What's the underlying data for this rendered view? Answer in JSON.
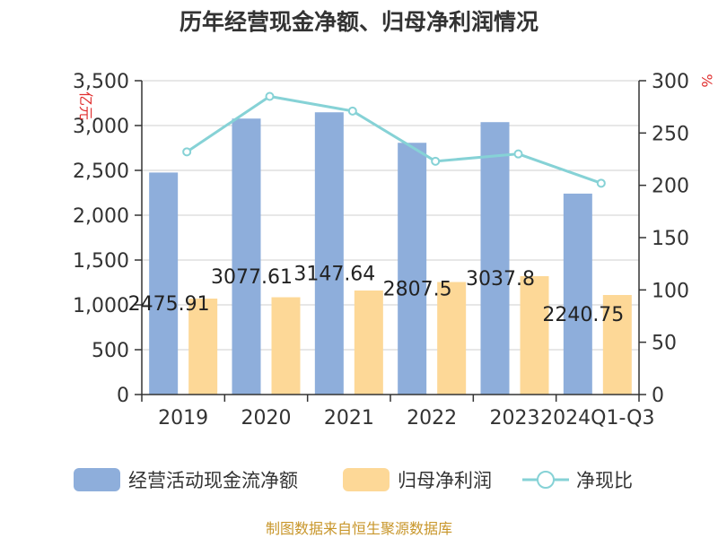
{
  "chart_data": {
    "type": "bar",
    "title": "历年经营现金净额、归母净利润情况",
    "categories": [
      "2019",
      "2020",
      "2021",
      "2022",
      "2023",
      "2024Q1-Q3"
    ],
    "series": [
      {
        "name": "经营活动现金流净额",
        "type": "bar",
        "axis": "left",
        "color": "#8eaedb",
        "values": [
          2475.91,
          3077.61,
          3147.64,
          2807.5,
          3037.8,
          2240.75
        ],
        "data_labels": [
          "2475.91",
          "3077.61",
          "3147.64",
          "2807.5",
          "3037.8",
          "2240.75"
        ]
      },
      {
        "name": "归母净利润",
        "type": "bar",
        "axis": "left",
        "color": "#fdd897",
        "values": [
          1070,
          1085,
          1160,
          1255,
          1320,
          1110
        ]
      },
      {
        "name": "净现比",
        "type": "line",
        "axis": "right",
        "color": "#86d2d6",
        "values": [
          232,
          285,
          271,
          223,
          230,
          202
        ]
      }
    ],
    "y_left": {
      "label": "亿元",
      "ylim": [
        0,
        3500
      ],
      "ticks": [
        "0",
        "500",
        "1,000",
        "1,500",
        "2,000",
        "2,500",
        "3,000",
        "3,500"
      ],
      "tick_values": [
        0,
        500,
        1000,
        1500,
        2000,
        2500,
        3000,
        3500
      ]
    },
    "y_right": {
      "label": "%",
      "ylim": [
        0,
        300
      ],
      "ticks": [
        "0",
        "50",
        "100",
        "150",
        "200",
        "250",
        "300"
      ],
      "tick_values": [
        0,
        50,
        100,
        150,
        200,
        250,
        300
      ]
    },
    "grid": true,
    "legend_position": "bottom",
    "source": "制图数据来自恒生聚源数据库"
  }
}
